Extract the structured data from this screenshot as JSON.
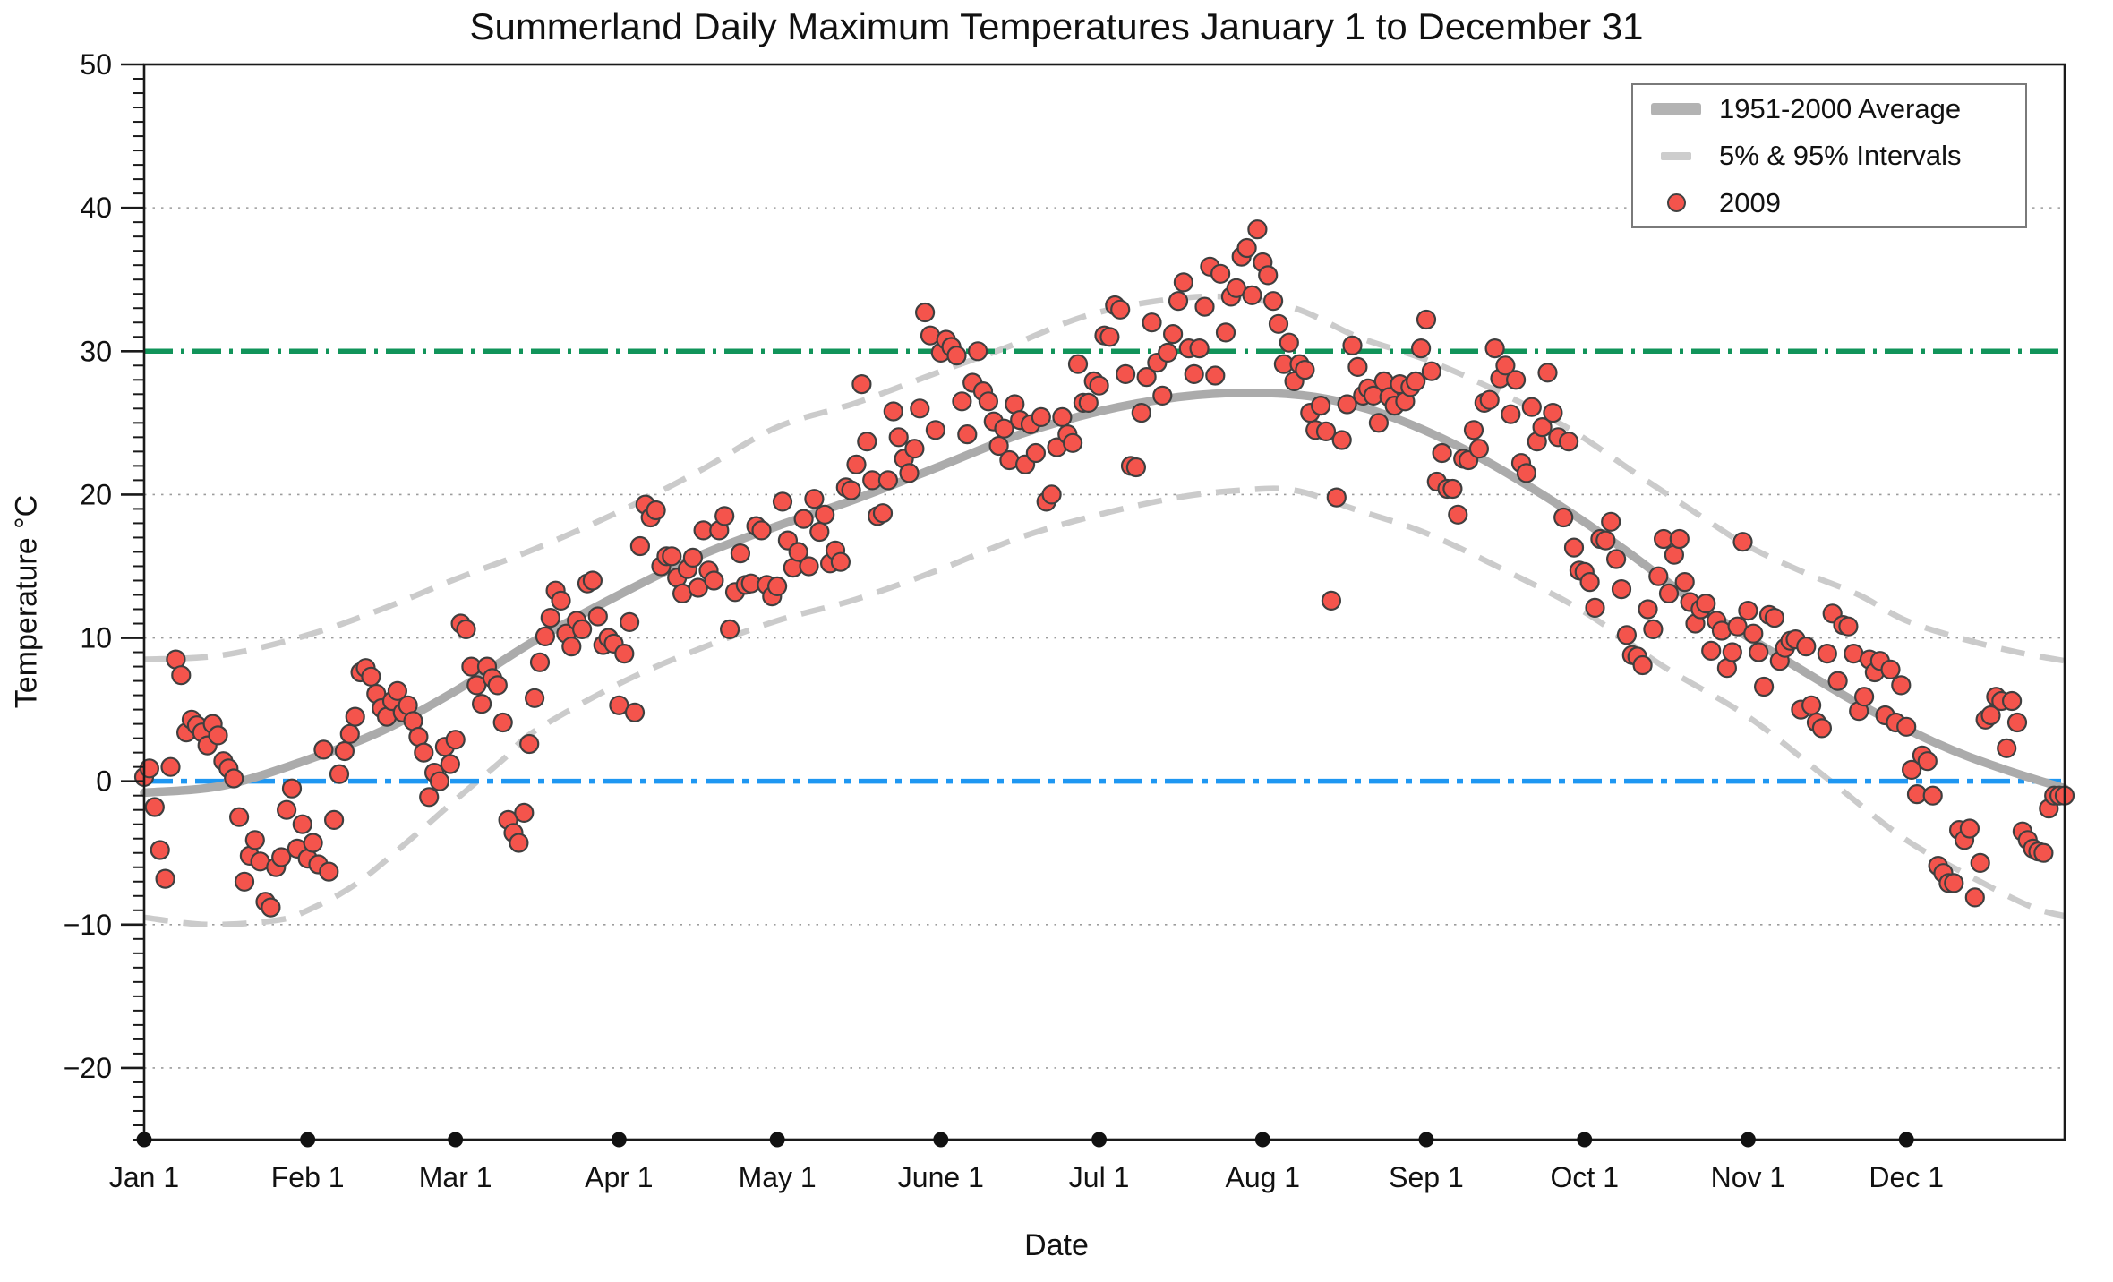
{
  "title": "Summerland Daily Maximum Temperatures January 1 to December 31",
  "axes": {
    "x": {
      "label": "Date",
      "ticks": [
        {
          "label": "Jan 1",
          "day": 0
        },
        {
          "label": "Feb 1",
          "day": 31
        },
        {
          "label": "Mar 1",
          "day": 59
        },
        {
          "label": "Apr 1",
          "day": 90
        },
        {
          "label": "May 1",
          "day": 120
        },
        {
          "label": "June 1",
          "day": 151
        },
        {
          "label": "Jul 1",
          "day": 181
        },
        {
          "label": "Aug 1",
          "day": 212
        },
        {
          "label": "Sep 1",
          "day": 243
        },
        {
          "label": "Oct 1",
          "day": 273
        },
        {
          "label": "Nov 1",
          "day": 304
        },
        {
          "label": "Dec 1",
          "day": 334
        }
      ],
      "range_days": [
        0,
        364
      ]
    },
    "y": {
      "label": "Temperature °C",
      "ticks": [
        {
          "value": 50,
          "label": "50"
        },
        {
          "value": 40,
          "label": "40"
        },
        {
          "value": 30,
          "label": "30"
        },
        {
          "value": 20,
          "label": "20"
        },
        {
          "value": 10,
          "label": "10"
        },
        {
          "value": 0,
          "label": "0"
        },
        {
          "value": -10,
          "label": "−10"
        },
        {
          "value": -20,
          "label": "−20"
        }
      ],
      "minor_tick_step": 1,
      "gridline_values": [
        40,
        20,
        10,
        -10,
        -20
      ],
      "range": [
        -25,
        50
      ]
    }
  },
  "legend": {
    "entries": [
      {
        "label": "1951-2000 Average",
        "swatch": "thick-gray-line"
      },
      {
        "label": "5% & 95% Intervals",
        "swatch": "gray-dashed-line"
      },
      {
        "label": "2009",
        "swatch": "red-dot"
      }
    ]
  },
  "styles": {
    "average_color": "#ababab",
    "interval_color": "#cbcbcb",
    "threshold_30_color": "#11945A",
    "freezing_0_color": "#1E97F2",
    "dot_fill": "#F4544C",
    "dot_edge": "#3F3F3F",
    "grid_color": "#9c9c9c",
    "axis_color": "#1a1a1a"
  },
  "chart_data": {
    "type": "scatter",
    "title": "Summerland Daily Maximum Temperatures January 1 to December 31",
    "xlabel": "Date",
    "ylabel": "Temperature °C",
    "ylim": [
      -25,
      50
    ],
    "xlim_days": [
      0,
      364
    ],
    "grid": "dotted horizontal at major ticks",
    "legend_position": "top-right",
    "reference_lines": [
      {
        "value": 30,
        "color": "#11945A",
        "style": "dash-dot"
      },
      {
        "value": 0,
        "color": "#1E97F2",
        "style": "dash-dot"
      }
    ],
    "series": [
      {
        "name": "1951-2000 Average",
        "type": "line",
        "points": [
          [
            0,
            -0.8
          ],
          [
            15,
            -0.3
          ],
          [
            31,
            1.5
          ],
          [
            45,
            3.5
          ],
          [
            59,
            6.3
          ],
          [
            74,
            9.8
          ],
          [
            90,
            13.0
          ],
          [
            105,
            15.7
          ],
          [
            120,
            17.8
          ],
          [
            135,
            19.7
          ],
          [
            151,
            22.0
          ],
          [
            166,
            24.2
          ],
          [
            181,
            25.8
          ],
          [
            196,
            26.8
          ],
          [
            209,
            27.1
          ],
          [
            222,
            26.8
          ],
          [
            235,
            25.6
          ],
          [
            250,
            23.2
          ],
          [
            265,
            20.0
          ],
          [
            280,
            16.3
          ],
          [
            295,
            12.2
          ],
          [
            310,
            8.7
          ],
          [
            325,
            5.4
          ],
          [
            340,
            2.6
          ],
          [
            352,
            0.9
          ],
          [
            364,
            -0.5
          ]
        ]
      },
      {
        "name": "95% Interval",
        "type": "dashed-line",
        "points": [
          [
            0,
            8.5
          ],
          [
            15,
            8.8
          ],
          [
            31,
            10.2
          ],
          [
            45,
            12.0
          ],
          [
            59,
            14.1
          ],
          [
            74,
            16.2
          ],
          [
            90,
            18.8
          ],
          [
            105,
            21.6
          ],
          [
            120,
            24.7
          ],
          [
            135,
            26.4
          ],
          [
            151,
            28.6
          ],
          [
            163,
            30.2
          ],
          [
            178,
            32.4
          ],
          [
            192,
            33.5
          ],
          [
            205,
            33.8
          ],
          [
            218,
            33.0
          ],
          [
            230,
            31.0
          ],
          [
            243,
            29.4
          ],
          [
            256,
            27.3
          ],
          [
            270,
            24.6
          ],
          [
            283,
            21.4
          ],
          [
            295,
            18.5
          ],
          [
            304,
            16.4
          ],
          [
            315,
            14.5
          ],
          [
            325,
            13.0
          ],
          [
            334,
            11.2
          ],
          [
            345,
            9.9
          ],
          [
            355,
            9.0
          ],
          [
            364,
            8.4
          ]
        ]
      },
      {
        "name": "5% Interval",
        "type": "dashed-line",
        "points": [
          [
            0,
            -9.5
          ],
          [
            12,
            -10.0
          ],
          [
            25,
            -9.7
          ],
          [
            31,
            -9.0
          ],
          [
            40,
            -7.2
          ],
          [
            50,
            -4.2
          ],
          [
            59,
            -1.3
          ],
          [
            68,
            1.5
          ],
          [
            74,
            3.5
          ],
          [
            90,
            6.8
          ],
          [
            105,
            9.2
          ],
          [
            120,
            11.2
          ],
          [
            135,
            12.7
          ],
          [
            151,
            14.8
          ],
          [
            166,
            17.0
          ],
          [
            181,
            18.6
          ],
          [
            196,
            19.8
          ],
          [
            208,
            20.3
          ],
          [
            218,
            20.3
          ],
          [
            230,
            18.9
          ],
          [
            243,
            17.3
          ],
          [
            258,
            14.7
          ],
          [
            273,
            11.8
          ],
          [
            288,
            8.0
          ],
          [
            304,
            4.5
          ],
          [
            319,
            0.2
          ],
          [
            334,
            -4.1
          ],
          [
            348,
            -7.0
          ],
          [
            358,
            -8.8
          ],
          [
            364,
            -9.4
          ]
        ]
      },
      {
        "name": "2009",
        "type": "scatter",
        "x_unit": "day of year (0 = Jan 1)",
        "values_by_day": [
          0.3,
          0.9,
          -1.8,
          -4.8,
          -6.8,
          1.0,
          8.5,
          7.4,
          3.4,
          4.3,
          3.9,
          3.4,
          2.5,
          4.0,
          3.2,
          1.4,
          0.9,
          0.2,
          -2.5,
          -7.0,
          -5.2,
          -4.1,
          -5.6,
          -8.4,
          -8.8,
          -6.0,
          -5.3,
          -2.0,
          -0.5,
          -4.7,
          -3.0,
          -5.4,
          -4.3,
          -5.8,
          2.2,
          -6.3,
          -2.7,
          0.5,
          2.1,
          3.3,
          4.5,
          7.6,
          7.9,
          7.3,
          6.1,
          5.1,
          4.5,
          5.6,
          6.3,
          4.8,
          5.3,
          4.2,
          3.1,
          2.0,
          -1.1,
          0.6,
          0.0,
          2.4,
          1.2,
          2.9,
          11.0,
          10.6,
          8.0,
          6.7,
          5.4,
          8.0,
          7.2,
          6.7,
          4.1,
          -2.7,
          -3.6,
          -4.3,
          -2.2,
          2.6,
          5.8,
          8.3,
          10.1,
          11.4,
          13.3,
          12.6,
          10.3,
          9.4,
          11.2,
          10.6,
          13.8,
          14.0,
          11.5,
          9.5,
          10.0,
          9.6,
          5.3,
          8.9,
          11.1,
          4.8,
          16.4,
          19.3,
          18.4,
          18.9,
          15.0,
          15.7,
          15.7,
          14.2,
          13.1,
          14.8,
          15.6,
          13.5,
          17.5,
          14.7,
          14.0,
          17.5,
          18.5,
          10.6,
          13.2,
          15.9,
          13.7,
          13.8,
          17.8,
          17.5,
          13.7,
          12.9,
          13.6,
          19.5,
          16.8,
          14.9,
          16.0,
          18.3,
          15.0,
          19.7,
          17.4,
          18.6,
          15.2,
          16.1,
          15.3,
          20.5,
          20.3,
          22.1,
          27.7,
          23.7,
          21.0,
          18.5,
          18.7,
          21.0,
          25.8,
          24.0,
          22.5,
          21.5,
          23.2,
          26.0,
          32.7,
          31.1,
          24.5,
          29.9,
          30.8,
          30.3,
          29.7,
          26.5,
          24.2,
          27.8,
          30.0,
          27.2,
          26.5,
          25.1,
          23.4,
          24.6,
          22.4,
          26.3,
          25.2,
          22.1,
          24.9,
          22.9,
          25.4,
          19.5,
          20.0,
          23.3,
          25.4,
          24.2,
          23.6,
          29.1,
          26.4,
          26.4,
          27.9,
          27.6,
          31.1,
          31.0,
          33.2,
          32.9,
          28.4,
          22.0,
          21.9,
          25.7,
          28.2,
          32.0,
          29.2,
          26.9,
          29.9,
          31.2,
          33.5,
          34.8,
          30.2,
          28.4,
          30.2,
          33.1,
          35.9,
          28.3,
          35.4,
          31.3,
          33.8,
          34.4,
          36.6,
          37.2,
          33.9,
          38.5,
          36.2,
          35.3,
          33.5,
          31.9,
          29.1,
          30.6,
          27.9,
          29.1,
          28.7,
          25.7,
          24.5,
          26.2,
          24.4,
          12.6,
          19.8,
          23.8,
          26.3,
          30.4,
          28.9,
          26.9,
          27.4,
          26.9,
          25.0,
          27.9,
          26.8,
          26.2,
          27.7,
          26.5,
          27.5,
          27.9,
          30.2,
          32.2,
          28.6,
          20.9,
          22.9,
          20.4,
          20.4,
          18.6,
          22.5,
          22.4,
          24.5,
          23.2,
          26.4,
          26.6,
          30.2,
          28.1,
          29.0,
          25.6,
          28.0,
          22.2,
          21.5,
          26.1,
          23.7,
          24.7,
          28.5,
          25.7,
          24.0,
          18.4,
          23.7,
          16.3,
          14.7,
          14.6,
          13.9,
          12.1,
          16.9,
          16.8,
          18.1,
          15.5,
          13.4,
          10.2,
          8.8,
          8.7,
          8.1,
          12.0,
          10.6,
          14.3,
          16.9,
          13.1,
          15.8,
          16.9,
          13.9,
          12.5,
          11.0,
          12.0,
          12.4,
          9.1,
          11.2,
          10.5,
          7.9,
          9.0,
          10.8,
          16.7,
          11.9,
          10.3,
          9.0,
          6.6,
          11.6,
          11.4,
          8.4,
          9.3,
          9.8,
          9.9,
          5.0,
          9.4,
          5.3,
          4.1,
          3.7,
          8.9,
          11.7,
          7.0,
          10.9,
          10.8,
          8.9,
          4.9,
          5.9,
          8.5,
          7.6,
          8.4,
          4.6,
          7.8,
          4.1,
          6.7,
          3.8,
          0.8,
          -0.9,
          1.8,
          1.4,
          -1.0,
          -5.9,
          -6.4,
          -7.1,
          -7.1,
          -3.4,
          -4.1,
          -3.3,
          -8.1,
          -5.7,
          4.3,
          4.6,
          5.9,
          5.6,
          2.3,
          5.6,
          4.1,
          -3.5,
          -4.1,
          -4.7,
          -4.9,
          -5.0,
          -1.9,
          -1.0,
          -1.0,
          -1.0
        ]
      }
    ]
  }
}
